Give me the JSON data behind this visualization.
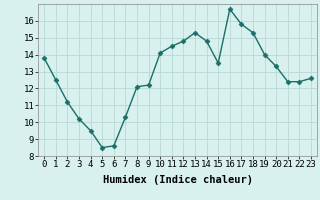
{
  "x": [
    0,
    1,
    2,
    3,
    4,
    5,
    6,
    7,
    8,
    9,
    10,
    11,
    12,
    13,
    14,
    15,
    16,
    17,
    18,
    19,
    20,
    21,
    22,
    23
  ],
  "y": [
    13.8,
    12.5,
    11.2,
    10.2,
    9.5,
    8.5,
    8.6,
    10.3,
    12.1,
    12.2,
    14.1,
    14.5,
    14.8,
    15.3,
    14.8,
    13.5,
    16.7,
    15.8,
    15.3,
    14.0,
    13.3,
    12.4,
    12.4,
    12.6
  ],
  "line_color": "#1a7068",
  "marker": "D",
  "marker_size": 2.5,
  "bg_color": "#d8f0ee",
  "grid_color": "#b8d8d4",
  "xlabel": "Humidex (Indice chaleur)",
  "xlim": [
    -0.5,
    23.5
  ],
  "ylim": [
    8,
    17
  ],
  "yticks": [
    8,
    9,
    10,
    11,
    12,
    13,
    14,
    15,
    16
  ],
  "xticks": [
    0,
    1,
    2,
    3,
    4,
    5,
    6,
    7,
    8,
    9,
    10,
    11,
    12,
    13,
    14,
    15,
    16,
    17,
    18,
    19,
    20,
    21,
    22,
    23
  ],
  "xlabel_fontsize": 7.5,
  "tick_fontsize": 6.5,
  "line_width": 1.0
}
